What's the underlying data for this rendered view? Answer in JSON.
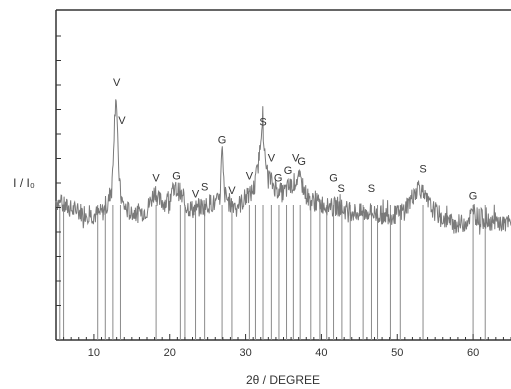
{
  "chart_data": {
    "type": "line",
    "xlabel": "2θ / DEGREE",
    "ylabel": "I / I₀",
    "xlim": [
      5,
      65
    ],
    "x_ticks": [
      10,
      20,
      30,
      40,
      50,
      60
    ],
    "grid": false,
    "legend": "none",
    "series": [
      {
        "x": [
          5,
          6,
          7,
          8,
          9,
          10,
          11,
          11.8,
          12.4,
          12.7,
          12.9,
          13.05,
          13.2,
          13.5,
          13.8,
          14.3,
          15,
          16,
          17,
          17.7,
          18.1,
          18.5,
          19.5,
          20.2,
          20.8,
          21.3,
          21.7,
          22.2,
          23,
          23.8,
          24.8,
          25.4,
          26,
          26.6,
          26.9,
          27.2,
          27.8,
          28.5,
          29.3,
          30.1,
          30.6,
          31.2,
          31.8,
          32.2,
          32.6,
          33.2,
          33.6,
          34.2,
          34.9,
          35.6,
          36.2,
          36.8,
          37.3,
          37.9,
          38.5,
          39.3,
          40.2,
          40.9,
          41.4,
          42.1,
          43,
          44,
          45,
          45.8,
          46.3,
          46.8,
          47.8,
          48.8,
          49.8,
          50.4,
          50.9,
          51.6,
          52.4,
          52.9,
          53.5,
          54.5,
          55.5,
          56.5,
          57.5,
          58.5,
          59.2,
          59.7,
          60.3,
          61,
          62,
          63,
          64,
          65
        ],
        "y": [
          38,
          35,
          33,
          32,
          31,
          30,
          31,
          35,
          48,
          80,
          100,
          83,
          60,
          42,
          36,
          33,
          31,
          31,
          33,
          40,
          44,
          38,
          37,
          42,
          44,
          43,
          38,
          35,
          33,
          34,
          35,
          37,
          36,
          38,
          67,
          42,
          37,
          36,
          36,
          40,
          41,
          46,
          62,
          85,
          58,
          50,
          47,
          44,
          42,
          45,
          47,
          50,
          49,
          42,
          38,
          37,
          36,
          35,
          34,
          35,
          33,
          32,
          31,
          31,
          32,
          31,
          30,
          30,
          30,
          31,
          33,
          37,
          43,
          47,
          40,
          34,
          30,
          27,
          25,
          25,
          27,
          30,
          30,
          28,
          27,
          26,
          25,
          25
        ],
        "reference_lines": [
          5.5,
          6,
          10.5,
          11.5,
          12.5,
          13.5,
          18.2,
          21.4,
          22,
          23.4,
          24.6,
          26.9,
          28.2,
          30.5,
          31.3,
          32.3,
          33.4,
          34.4,
          35.4,
          36.3,
          37.2,
          38.6,
          39.8,
          40.7,
          41.6,
          42.7,
          43.8,
          45.5,
          46.6,
          47.4,
          49.1,
          50.4,
          53.4,
          60,
          61.6
        ]
      }
    ],
    "peak_labels": [
      {
        "text": "V",
        "x": 13.0,
        "y": 100
      },
      {
        "text": "V",
        "x": 13.7,
        "y": 79
      },
      {
        "text": "V",
        "x": 18.2,
        "y": 47
      },
      {
        "text": "G",
        "x": 20.9,
        "y": 48
      },
      {
        "text": "V",
        "x": 23.4,
        "y": 38
      },
      {
        "text": "S",
        "x": 24.6,
        "y": 42
      },
      {
        "text": "G",
        "x": 26.9,
        "y": 68
      },
      {
        "text": "V",
        "x": 28.2,
        "y": 40
      },
      {
        "text": "V",
        "x": 30.5,
        "y": 48
      },
      {
        "text": "S",
        "x": 32.3,
        "y": 78
      },
      {
        "text": "V",
        "x": 33.4,
        "y": 58
      },
      {
        "text": "G",
        "x": 34.3,
        "y": 47
      },
      {
        "text": "G",
        "x": 35.6,
        "y": 51
      },
      {
        "text": "V",
        "x": 36.6,
        "y": 58
      },
      {
        "text": "G",
        "x": 37.4,
        "y": 56
      },
      {
        "text": "G",
        "x": 41.6,
        "y": 47
      },
      {
        "text": "S",
        "x": 42.6,
        "y": 41
      },
      {
        "text": "S",
        "x": 46.6,
        "y": 41
      },
      {
        "text": "S",
        "x": 53.4,
        "y": 52
      },
      {
        "text": "G",
        "x": 60.0,
        "y": 37
      }
    ]
  }
}
